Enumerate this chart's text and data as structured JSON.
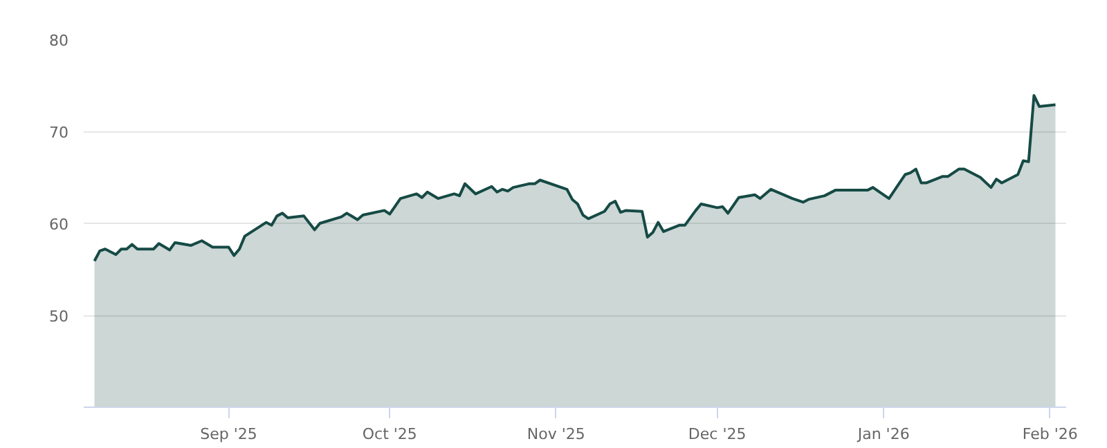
{
  "chart_data": {
    "type": "area",
    "x": [
      "2025-08-07",
      "2025-08-08",
      "2025-08-09",
      "2025-08-11",
      "2025-08-12",
      "2025-08-13",
      "2025-08-14",
      "2025-08-15",
      "2025-08-18",
      "2025-08-19",
      "2025-08-21",
      "2025-08-22",
      "2025-08-25",
      "2025-08-27",
      "2025-08-29",
      "2025-09-01",
      "2025-09-02",
      "2025-09-03",
      "2025-09-04",
      "2025-09-08",
      "2025-09-09",
      "2025-09-10",
      "2025-09-11",
      "2025-09-12",
      "2025-09-15",
      "2025-09-17",
      "2025-09-18",
      "2025-09-22",
      "2025-09-23",
      "2025-09-25",
      "2025-09-26",
      "2025-09-30",
      "2025-10-01",
      "2025-10-03",
      "2025-10-06",
      "2025-10-07",
      "2025-10-08",
      "2025-10-10",
      "2025-10-13",
      "2025-10-14",
      "2025-10-15",
      "2025-10-17",
      "2025-10-20",
      "2025-10-21",
      "2025-10-22",
      "2025-10-23",
      "2025-10-24",
      "2025-10-27",
      "2025-10-28",
      "2025-10-29",
      "2025-11-03",
      "2025-11-04",
      "2025-11-05",
      "2025-11-06",
      "2025-11-07",
      "2025-11-10",
      "2025-11-11",
      "2025-11-12",
      "2025-11-13",
      "2025-11-14",
      "2025-11-17",
      "2025-11-18",
      "2025-11-19",
      "2025-11-20",
      "2025-11-21",
      "2025-11-24",
      "2025-11-25",
      "2025-11-27",
      "2025-11-28",
      "2025-12-01",
      "2025-12-02",
      "2025-12-03",
      "2025-12-05",
      "2025-12-08",
      "2025-12-09",
      "2025-12-11",
      "2025-12-15",
      "2025-12-17",
      "2025-12-18",
      "2025-12-21",
      "2025-12-23",
      "2025-12-29",
      "2025-12-30",
      "2026-01-02",
      "2026-01-05",
      "2026-01-06",
      "2026-01-07",
      "2026-01-08",
      "2026-01-09",
      "2026-01-12",
      "2026-01-13",
      "2026-01-15",
      "2026-01-16",
      "2026-01-19",
      "2026-01-21",
      "2026-01-22",
      "2026-01-23",
      "2026-01-26",
      "2026-01-27",
      "2026-01-28",
      "2026-01-29",
      "2026-01-30",
      "2026-02-02"
    ],
    "series": [
      {
        "color": "#164a45",
        "values": [
          55.9,
          57.0,
          57.2,
          56.6,
          57.2,
          57.2,
          57.7,
          57.2,
          57.2,
          57.8,
          57.1,
          57.9,
          57.6,
          58.1,
          57.4,
          57.4,
          56.5,
          57.2,
          58.6,
          60.1,
          59.8,
          60.8,
          61.1,
          60.6,
          60.8,
          59.3,
          60.0,
          60.7,
          61.1,
          60.4,
          60.9,
          61.4,
          61.0,
          62.7,
          63.2,
          62.8,
          63.4,
          62.7,
          63.2,
          63.0,
          64.3,
          63.2,
          64.0,
          63.4,
          63.7,
          63.5,
          63.9,
          64.3,
          64.3,
          64.7,
          63.7,
          62.6,
          62.1,
          60.9,
          60.5,
          61.3,
          62.1,
          62.4,
          61.2,
          61.4,
          61.3,
          58.5,
          59.0,
          60.1,
          59.1,
          59.8,
          59.8,
          61.4,
          62.1,
          61.7,
          61.8,
          61.1,
          62.8,
          63.1,
          62.7,
          63.7,
          62.7,
          62.3,
          62.6,
          63.0,
          63.6,
          63.6,
          63.9,
          62.7,
          65.3,
          65.5,
          65.9,
          64.4,
          64.4,
          65.1,
          65.1,
          65.9,
          65.9,
          65.0,
          63.9,
          64.8,
          64.4,
          65.3,
          66.8,
          66.7,
          73.9,
          72.7,
          72.9
        ]
      }
    ],
    "xlim": [
      "2025-08-05",
      "2026-02-04"
    ],
    "xticks": [
      {
        "value": "2025-09-01",
        "label": "Sep '25"
      },
      {
        "value": "2025-10-01",
        "label": "Oct '25"
      },
      {
        "value": "2025-11-01",
        "label": "Nov '25"
      },
      {
        "value": "2025-12-01",
        "label": "Dec '25"
      },
      {
        "value": "2026-01-01",
        "label": "Jan '26"
      },
      {
        "value": "2026-02-01",
        "label": "Feb '26"
      }
    ],
    "ylim": [
      40,
      80
    ],
    "yticks": [
      50,
      60,
      70,
      80
    ],
    "grid": "y"
  }
}
